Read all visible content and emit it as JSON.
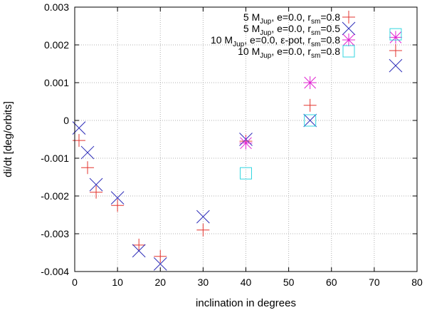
{
  "chart_data": {
    "type": "scatter",
    "xlabel": "inclination in degrees",
    "ylabel": "di/dt [deg/orbits]",
    "xlim": [
      0,
      80
    ],
    "ylim": [
      -0.004,
      0.003
    ],
    "xticks": [
      "0",
      "10",
      "20",
      "30",
      "40",
      "50",
      "60",
      "70",
      "80"
    ],
    "yticks": [
      "-0.004",
      "-0.003",
      "-0.002",
      "-0.001",
      "0",
      "0.001",
      "0.002",
      "0.003"
    ],
    "grid": true,
    "legend_position": "top-right",
    "series": [
      {
        "name": "5 MJup, e=0.0, rsm=0.8",
        "legend": {
          "pre": "5 M",
          "sub1": "Jup",
          "mid": ", e=0.0, r",
          "sub2": "sm",
          "post": "=0.8"
        },
        "marker": "plus",
        "color": "#e3342f",
        "x": [
          1,
          3,
          5,
          10,
          15,
          20,
          30,
          40,
          55,
          75
        ],
        "y": [
          -0.00053,
          -0.00125,
          -0.0019,
          -0.00225,
          -0.0033,
          -0.0036,
          -0.0029,
          -0.00055,
          0.0004,
          0.00185
        ]
      },
      {
        "name": "5 MJup, e=0.0, rsm=0.5",
        "legend": {
          "pre": "5 M",
          "sub1": "Jup",
          "mid": ", e=0.0, r",
          "sub2": "sm",
          "post": "=0.5"
        },
        "marker": "cross",
        "color": "#2c2cb8",
        "x": [
          1,
          3,
          5,
          10,
          15,
          20,
          30,
          40,
          55,
          75
        ],
        "y": [
          -0.0002,
          -0.00085,
          -0.0017,
          -0.00205,
          -0.00345,
          -0.0038,
          -0.00255,
          -0.0005,
          0.0,
          0.00145
        ]
      },
      {
        "name": "10 MJup, e=0.0, ε-pot, rsm=0.8",
        "legend": {
          "pre": "10 M",
          "sub1": "Jup",
          "mid": ", e=0.0, ε-pot, r",
          "sub2": "sm",
          "post": "=0.8"
        },
        "marker": "star",
        "color": "#e020d0",
        "x": [
          40,
          55,
          75
        ],
        "y": [
          -0.0006,
          0.001,
          0.0022
        ]
      },
      {
        "name": "10 MJup, e=0.0, rsm=0.8",
        "legend": {
          "pre": "10 M",
          "sub1": "Jup",
          "mid": ", e=0.0, r",
          "sub2": "sm",
          "post": "=0.8"
        },
        "marker": "square",
        "color": "#33d6e0",
        "x": [
          40,
          55,
          75
        ],
        "y": [
          -0.0014,
          0.0,
          0.00228
        ]
      }
    ]
  }
}
